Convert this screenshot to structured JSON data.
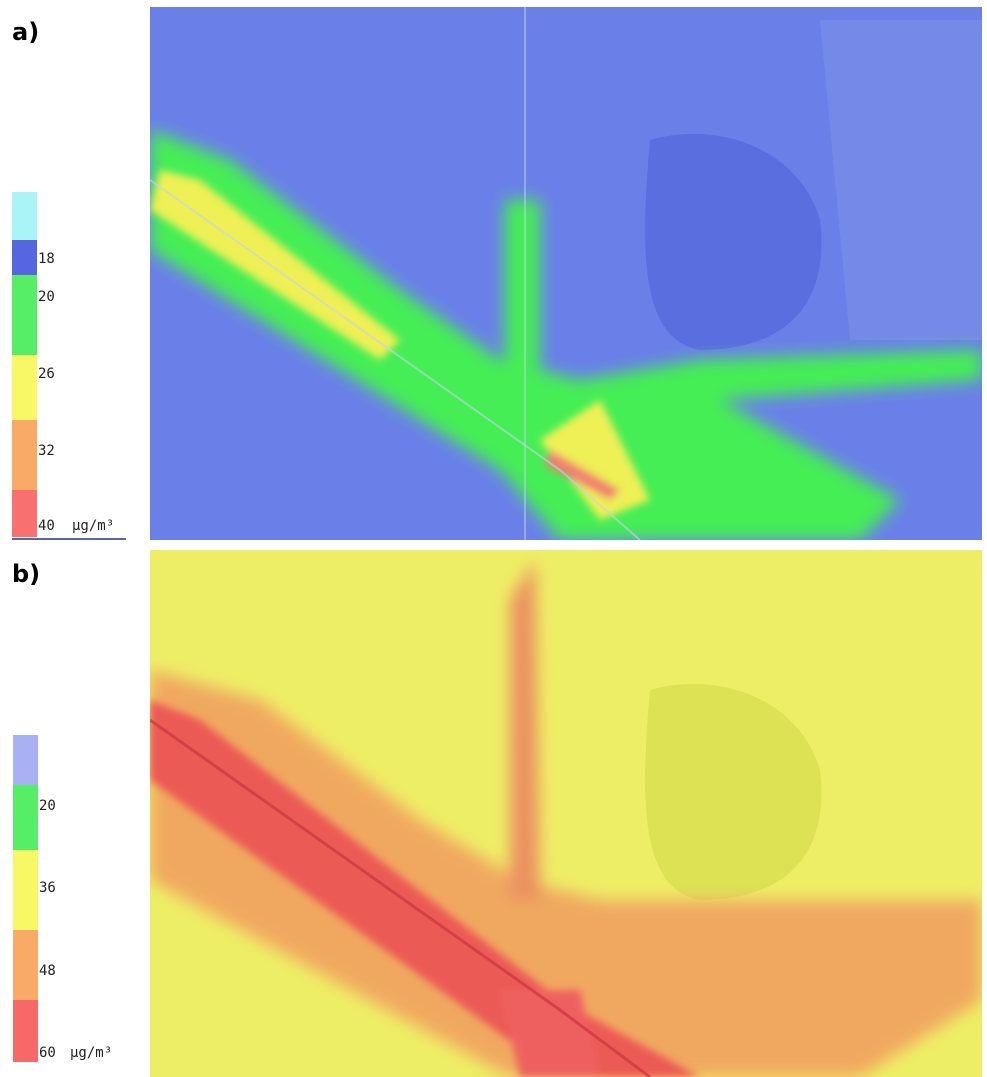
{
  "panels": [
    {
      "label": "a)",
      "legend": {
        "ticks": [
          "18",
          "20",
          "26",
          "32",
          "40"
        ],
        "unit": "µg/m³"
      }
    },
    {
      "label": "b)",
      "legend": {
        "ticks": [
          "20",
          "36",
          "48",
          "60"
        ],
        "unit": "µg/m³"
      }
    }
  ]
}
